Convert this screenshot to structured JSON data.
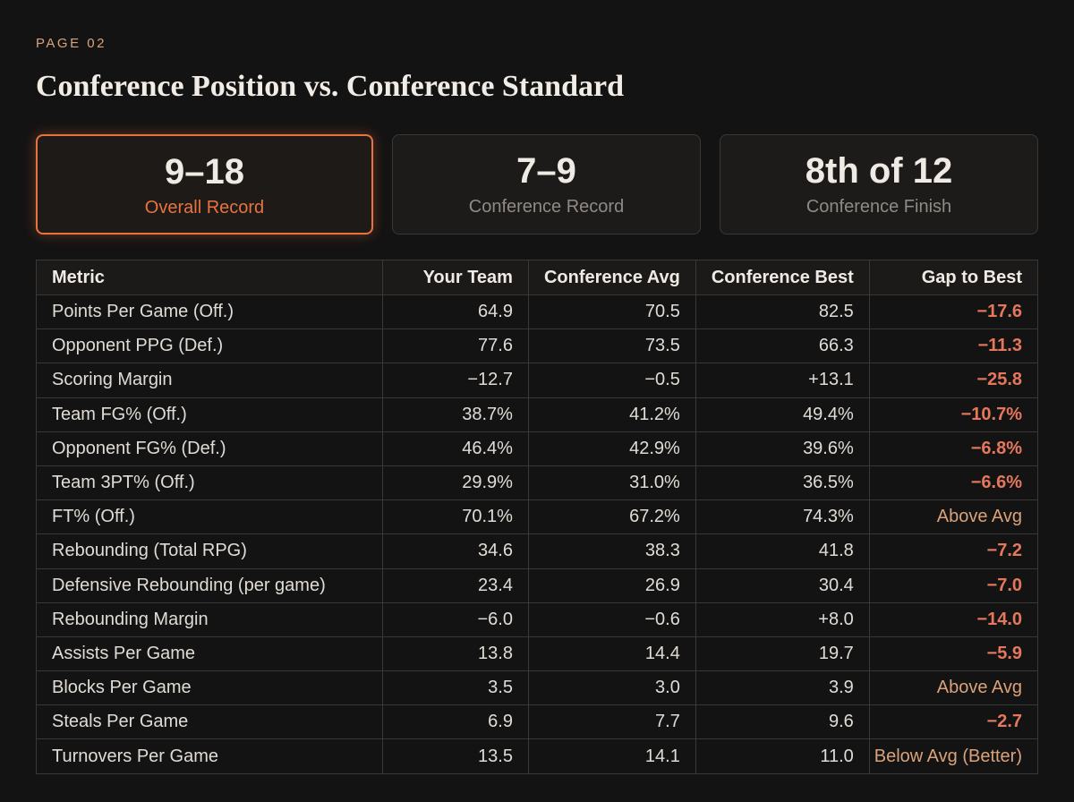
{
  "header": {
    "page_label": "PAGE 02",
    "title": "Conference Position vs. Conference Standard"
  },
  "cards": [
    {
      "value": "9–18",
      "label": "Overall Record"
    },
    {
      "value": "7–9",
      "label": "Conference Record"
    },
    {
      "value": "8th of 12",
      "label": "Conference Finish"
    }
  ],
  "table": {
    "columns": [
      "Metric",
      "Your Team",
      "Conference Avg",
      "Conference Best",
      "Gap to Best"
    ],
    "rows": [
      [
        "Points Per Game (Off.)",
        "64.9",
        "70.5",
        "82.5",
        "−17.6"
      ],
      [
        "Opponent PPG (Def.)",
        "77.6",
        "73.5",
        "66.3",
        "−11.3"
      ],
      [
        "Scoring Margin",
        "−12.7",
        "−0.5",
        "+13.1",
        "−25.8"
      ],
      [
        "Team FG% (Off.)",
        "38.7%",
        "41.2%",
        "49.4%",
        "−10.7%"
      ],
      [
        "Opponent FG% (Def.)",
        "46.4%",
        "42.9%",
        "39.6%",
        "−6.8%"
      ],
      [
        "Team 3PT% (Off.)",
        "29.9%",
        "31.0%",
        "36.5%",
        "−6.6%"
      ],
      [
        "FT% (Off.)",
        "70.1%",
        "67.2%",
        "74.3%",
        "Above Avg"
      ],
      [
        "Rebounding (Total RPG)",
        "34.6",
        "38.3",
        "41.8",
        "−7.2"
      ],
      [
        "Defensive Rebounding (per game)",
        "23.4",
        "26.9",
        "30.4",
        "−7.0"
      ],
      [
        "Rebounding Margin",
        "−6.0",
        "−0.6",
        "+8.0",
        "−14.0"
      ],
      [
        "Assists Per Game",
        "13.8",
        "14.4",
        "19.7",
        "−5.9"
      ],
      [
        "Blocks Per Game",
        "3.5",
        "3.0",
        "3.9",
        "Above Avg"
      ],
      [
        "Steals Per Game",
        "6.9",
        "7.7",
        "9.6",
        "−2.7"
      ],
      [
        "Turnovers Per Game",
        "13.5",
        "14.1",
        "11.0",
        "Below Avg (Better)"
      ]
    ]
  }
}
